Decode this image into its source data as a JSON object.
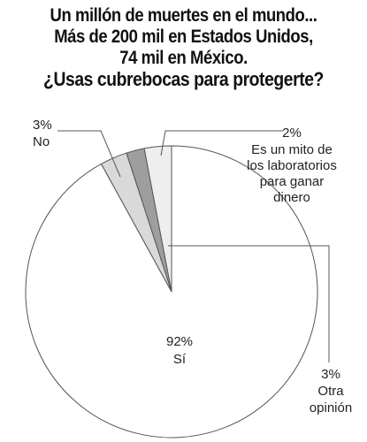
{
  "title_lines": [
    "Un millón de muertes en el mundo...",
    "Más de 200 mil en Estados Unidos,",
    "74 mil en México.",
    "¿Usas cubrebocas para protegerte?"
  ],
  "chart_data": {
    "type": "pie",
    "title": "Un millón de muertes en el mundo... Más de 200 mil en Estados Unidos, 74 mil en México. ¿Usas cubrebocas para protegerte?",
    "slices": [
      {
        "pct_label": "92%",
        "label": [
          "Sí"
        ],
        "value": 92,
        "color": "#ffffff"
      },
      {
        "pct_label": "3%",
        "label": [
          "No"
        ],
        "value": 3,
        "color": "#d9d9d9"
      },
      {
        "pct_label": "2%",
        "label": [
          "Es un mito de",
          "los laboratorios",
          "para ganar",
          "dinero"
        ],
        "value": 2,
        "color": "#9e9e9e"
      },
      {
        "pct_label": "3%",
        "label": [
          "Otra",
          "opinión"
        ],
        "value": 3,
        "color": "#eeeeee"
      }
    ]
  }
}
